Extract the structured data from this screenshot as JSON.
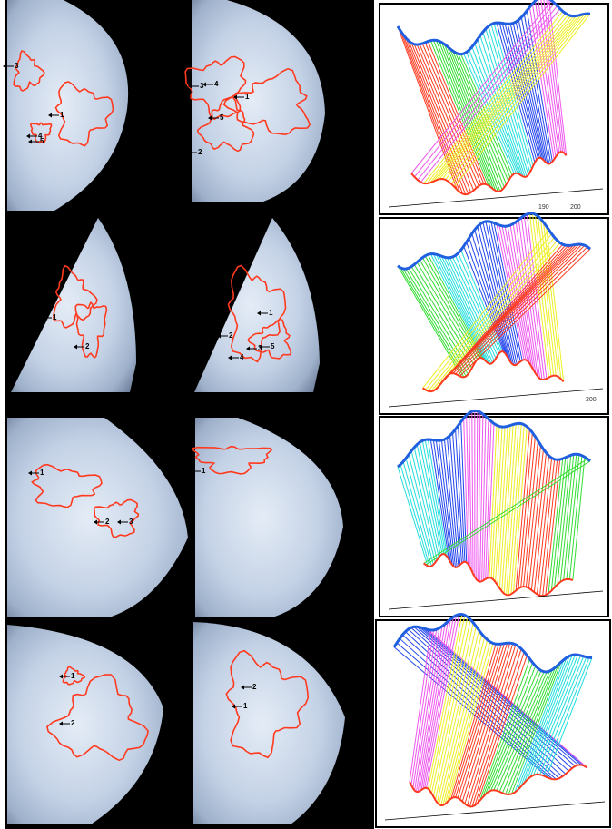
{
  "panels": [
    {
      "left_labels": [
        "3",
        "1",
        "4",
        "5"
      ],
      "middle_labels": [
        "3",
        "4",
        "1",
        "5",
        "2"
      ],
      "axis_ticks": [
        "190",
        "200"
      ]
    },
    {
      "left_labels": [
        "1",
        "2"
      ],
      "middle_labels": [
        "1",
        "2",
        "3",
        "5",
        "4"
      ],
      "axis_ticks": [
        "200"
      ]
    },
    {
      "left_labels": [
        "1",
        "2",
        "3"
      ],
      "middle_labels": [
        "1"
      ],
      "axis_ticks": []
    },
    {
      "left_labels": [
        "1",
        "2"
      ],
      "middle_labels": [
        "2",
        "1"
      ],
      "axis_ticks": []
    }
  ]
}
